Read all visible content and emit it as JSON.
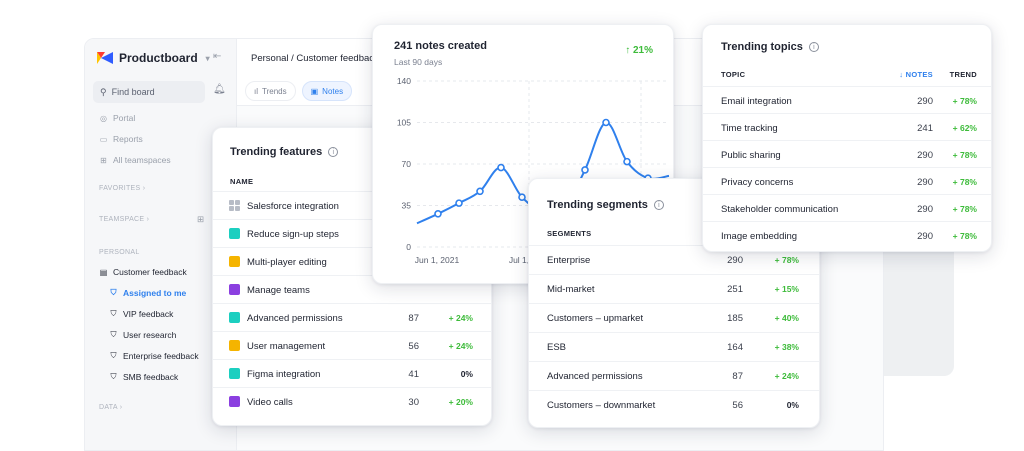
{
  "sidebar": {
    "brand": "Productboard",
    "find_placeholder": "Find board",
    "items_top": [
      {
        "label": "Portal",
        "icon": "portal-icon"
      },
      {
        "label": "Reports",
        "icon": "reports-icon"
      },
      {
        "label": "All teamspaces",
        "icon": "teamspaces-icon"
      }
    ],
    "sections": {
      "favorites": "FAVORITES",
      "teamspace": "TEAMSPACE",
      "personal": "PERSONAL",
      "data": "DATA"
    },
    "personal_board": "Customer feedback",
    "personal_items": [
      {
        "label": "Assigned to me",
        "active": true
      },
      {
        "label": "VIP feedback",
        "active": false
      },
      {
        "label": "User research",
        "active": false
      },
      {
        "label": "Enterprise feedback",
        "active": false
      },
      {
        "label": "SMB feedback",
        "active": false
      }
    ]
  },
  "main": {
    "breadcrumb": "Personal / Customer feedback",
    "tabs": [
      {
        "label": "Trends",
        "active": false
      },
      {
        "label": "Notes",
        "active": true
      }
    ]
  },
  "features_card": {
    "title": "Trending features",
    "column": "NAME",
    "rows": [
      {
        "name": "Salesforce integration",
        "color": "grid",
        "num": "",
        "trend": ""
      },
      {
        "name": "Reduce sign-up steps",
        "color": "#1ccfc0",
        "num": "",
        "trend": ""
      },
      {
        "name": "Multi-player editing",
        "color": "#f5b400",
        "num": "",
        "trend": ""
      },
      {
        "name": "Manage teams",
        "color": "#8b3fe0",
        "num": "",
        "trend": ""
      },
      {
        "name": "Advanced permissions",
        "color": "#1ccfc0",
        "num": "87",
        "trend": "+ 24%"
      },
      {
        "name": "User management",
        "color": "#f5b400",
        "num": "56",
        "trend": "+ 24%"
      },
      {
        "name": "Figma integration",
        "color": "#1ccfc0",
        "num": "41",
        "trend": "0%"
      },
      {
        "name": "Video calls",
        "color": "#8b3fe0",
        "num": "30",
        "trend": "+ 20%"
      }
    ]
  },
  "notes_card": {
    "title": "241 notes created",
    "subtitle": "Last 90 days",
    "trend": "↑ 21%"
  },
  "chart_data": {
    "type": "line",
    "y_ticks": [
      "140",
      "105",
      "70",
      "35",
      "0"
    ],
    "x_ticks": [
      "Jun 1, 2021",
      "Jul 1,"
    ],
    "ylim": [
      0,
      140
    ],
    "grid": true,
    "series": [
      {
        "values": [
          20,
          28,
          37,
          47,
          67,
          42,
          30,
          33,
          65,
          105,
          72,
          58,
          60
        ]
      }
    ],
    "color": "#2f80ed"
  },
  "segments_card": {
    "title": "Trending segments",
    "column": "SEGMENTS",
    "rows": [
      {
        "name": "Enterprise",
        "num": "290",
        "trend": "+ 78%"
      },
      {
        "name": "Mid-market",
        "num": "251",
        "trend": "+ 15%"
      },
      {
        "name": "Customers – upmarket",
        "num": "185",
        "trend": "+ 40%"
      },
      {
        "name": "ESB",
        "num": "164",
        "trend": "+ 38%"
      },
      {
        "name": "Advanced permissions",
        "num": "87",
        "trend": "+ 24%"
      },
      {
        "name": "Customers – downmarket",
        "num": "56",
        "trend": "0%"
      }
    ]
  },
  "topics_card": {
    "title": "Trending topics",
    "columns": {
      "topic": "TOPIC",
      "notes": "↓ NOTES",
      "trend": "TREND"
    },
    "rows": [
      {
        "name": "Email integration",
        "num": "290",
        "trend": "+ 78%"
      },
      {
        "name": "Time tracking",
        "num": "241",
        "trend": "+ 62%"
      },
      {
        "name": "Public sharing",
        "num": "290",
        "trend": "+ 78%"
      },
      {
        "name": "Privacy concerns",
        "num": "290",
        "trend": "+ 78%"
      },
      {
        "name": "Stakeholder communication",
        "num": "290",
        "trend": "+ 78%"
      },
      {
        "name": "Image embedding",
        "num": "290",
        "trend": "+ 78%"
      }
    ]
  }
}
